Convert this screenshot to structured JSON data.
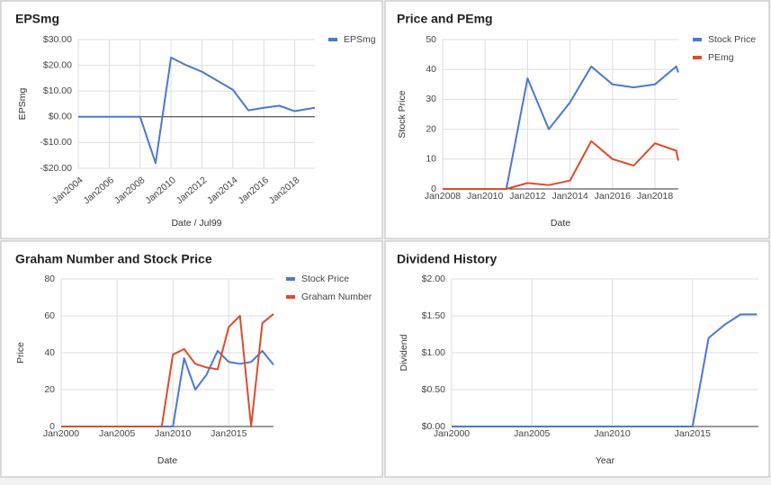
{
  "chart_data": [
    {
      "type": "line",
      "title": "EPSmg",
      "x_label": "Date / Jul99",
      "y_label": "EPSmg",
      "x": [
        2004,
        2005,
        2006,
        2007,
        2008,
        2009,
        2010,
        2011,
        2012,
        2013,
        2014,
        2015,
        2016,
        2017,
        2018,
        2019.3
      ],
      "series": [
        {
          "name": "EPSmg",
          "color": "#4a78d2",
          "values": [
            0,
            0,
            0,
            0,
            0,
            -18,
            23,
            20,
            17.5,
            14,
            10.5,
            2.5,
            3.5,
            4.3,
            2.2,
            3.5
          ]
        }
      ],
      "xlim": [
        2004,
        2019.3
      ],
      "xticks": [
        {
          "value": 2004,
          "label": "Jan2004"
        },
        {
          "value": 2006,
          "label": "Jan2006"
        },
        {
          "value": 2008,
          "label": "Jan2008"
        },
        {
          "value": 2010,
          "label": "Jan2010"
        },
        {
          "value": 2012,
          "label": "Jan2012"
        },
        {
          "value": 2014,
          "label": "Jan2014"
        },
        {
          "value": 2016,
          "label": "Jan2016"
        },
        {
          "value": 2018,
          "label": "Jan2018"
        }
      ],
      "ylim": [
        -20,
        30
      ],
      "yticks": [
        {
          "value": -20,
          "label": "-$20.00"
        },
        {
          "value": -10,
          "label": "-$10.00"
        },
        {
          "value": 0,
          "label": "$0.00"
        },
        {
          "value": 10,
          "label": "$10.00"
        },
        {
          "value": 20,
          "label": "$20.00"
        },
        {
          "value": 30,
          "label": "$30.00"
        }
      ],
      "grid": true,
      "legend": "right"
    },
    {
      "type": "line",
      "title": "Price and PEmg",
      "x_label": "Date",
      "y_label": "Stock Price",
      "x": [
        2008,
        2009,
        2010,
        2011,
        2012,
        2013,
        2014,
        2015,
        2016,
        2017,
        2018,
        2019,
        2019.1
      ],
      "series": [
        {
          "name": "Stock Price",
          "color": "#4a78d2",
          "values": [
            0,
            0,
            0,
            0,
            37,
            20,
            29,
            41,
            35,
            34,
            35,
            41,
            39
          ]
        },
        {
          "name": "PEmg",
          "color": "#dc4b2c",
          "values": [
            0,
            0,
            0,
            0,
            2,
            1.3,
            2.8,
            16,
            10,
            7.8,
            15.3,
            12.8,
            9.5
          ]
        }
      ],
      "xlim": [
        2008,
        2019.1
      ],
      "xticks": [
        {
          "value": 2008,
          "label": "Jan2008"
        },
        {
          "value": 2010,
          "label": "Jan2010"
        },
        {
          "value": 2012,
          "label": "Jan2012"
        },
        {
          "value": 2014,
          "label": "Jan2014"
        },
        {
          "value": 2016,
          "label": "Jan2016"
        },
        {
          "value": 2018,
          "label": "Jan2018"
        }
      ],
      "ylim": [
        0,
        50
      ],
      "yticks": [
        0,
        10,
        20,
        30,
        40,
        50
      ],
      "grid": true,
      "legend": "right"
    },
    {
      "type": "line",
      "title": "Graham Number and Stock Price",
      "x_label": "Date",
      "y_label": "Price",
      "x": [
        2000,
        2001,
        2002,
        2003,
        2004,
        2005,
        2006,
        2007,
        2008,
        2009,
        2010,
        2011,
        2012,
        2013,
        2014,
        2015,
        2016,
        2017,
        2018,
        2019
      ],
      "series": [
        {
          "name": "Stock Price",
          "color": "#4a78d2",
          "values": [
            0,
            0,
            0,
            0,
            0,
            0,
            0,
            0,
            0,
            0,
            0,
            37,
            20,
            28,
            41,
            35,
            34,
            35,
            41,
            33.5
          ]
        },
        {
          "name": "Graham Number",
          "color": "#dc4b2c",
          "values": [
            0,
            0,
            0,
            0,
            0,
            0,
            0,
            0,
            0,
            0,
            39,
            42,
            34,
            32,
            31,
            54,
            60,
            0,
            56,
            61
          ]
        }
      ],
      "xlim": [
        2000,
        2019
      ],
      "xticks": [
        {
          "value": 2000,
          "label": "Jan2000"
        },
        {
          "value": 2005,
          "label": "Jan2005"
        },
        {
          "value": 2010,
          "label": "Jan2010"
        },
        {
          "value": 2015,
          "label": "Jan2015"
        }
      ],
      "ylim": [
        0,
        80
      ],
      "yticks": [
        0,
        20,
        40,
        60,
        80
      ],
      "grid": true,
      "legend": "right"
    },
    {
      "type": "line",
      "title": "Dividend History",
      "x_label": "Year",
      "y_label": "Dividend",
      "x": [
        2000,
        2001,
        2002,
        2003,
        2004,
        2005,
        2006,
        2007,
        2008,
        2009,
        2010,
        2011,
        2012,
        2013,
        2014,
        2015,
        2016,
        2017,
        2018,
        2019
      ],
      "values": [
        0,
        0,
        0,
        0,
        0,
        0,
        0,
        0,
        0,
        0,
        0,
        0,
        0,
        0,
        0,
        0,
        1.2,
        1.38,
        1.52,
        1.52
      ],
      "color": "#4a78d2",
      "xlim": [
        2000,
        2019.1
      ],
      "xticks": [
        {
          "value": 2000,
          "label": "Jan2000"
        },
        {
          "value": 2005,
          "label": "Jan2005"
        },
        {
          "value": 2010,
          "label": "Jan2010"
        },
        {
          "value": 2015,
          "label": "Jan2015"
        }
      ],
      "ylim": [
        0,
        2
      ],
      "yticks": [
        {
          "value": 0,
          "label": "$0.00"
        },
        {
          "value": 0.5,
          "label": "$0.50"
        },
        {
          "value": 1,
          "label": "$1.00"
        },
        {
          "value": 1.5,
          "label": "$1.50"
        },
        {
          "value": 2,
          "label": "$2.00"
        }
      ],
      "grid": true
    }
  ]
}
